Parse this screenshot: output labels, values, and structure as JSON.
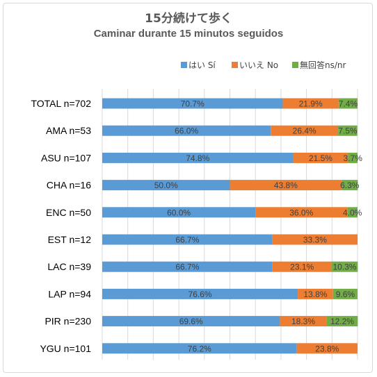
{
  "title": "15分続けて歩く",
  "subtitle": "Caminar durante 15 minutos seguidos",
  "legend": [
    {
      "label": "はい Sí",
      "color": "#5b9bd5"
    },
    {
      "label": "いいえ No",
      "color": "#ed7d31"
    },
    {
      "label": "無回答ns/nr",
      "color": "#70ad47"
    }
  ],
  "chart_data": {
    "type": "bar",
    "orientation": "horizontal",
    "stacked": "100%",
    "categories": [
      "TOTAL n=702",
      "AMA n=53",
      "ASU n=107",
      "CHA  n=16",
      "ENC n=50",
      "EST n=12",
      "LAC n=39",
      "LAP n=94",
      "PIR n=230",
      "YGU n=101"
    ],
    "series": [
      {
        "name": "はい Sí",
        "color": "#5b9bd5",
        "values": [
          70.7,
          66.0,
          74.8,
          50.0,
          60.0,
          66.7,
          66.7,
          76.6,
          69.6,
          76.2
        ],
        "labels": [
          "70.7%",
          "66.0%",
          "74.8%",
          "50.0%",
          "60.0%",
          "66.7%",
          "66.7%",
          "76.6%",
          "69.6%",
          "76.2%"
        ]
      },
      {
        "name": "いいえ No",
        "color": "#ed7d31",
        "values": [
          21.9,
          26.4,
          21.5,
          43.8,
          36.0,
          33.3,
          23.1,
          13.8,
          18.3,
          23.8
        ],
        "labels": [
          "21.9%",
          "26.4%",
          "21.5%",
          "43.8%",
          "36.0%",
          "33.3%",
          "23.1%",
          "13.8%",
          "18.3%",
          "23.8%"
        ]
      },
      {
        "name": "無回答ns/nr",
        "color": "#70ad47",
        "values": [
          7.4,
          7.5,
          3.7,
          6.3,
          4.0,
          0,
          10.3,
          9.6,
          12.2,
          0
        ],
        "labels": [
          "7.4%",
          "7.5%",
          "3.7%",
          "6.3%",
          "4.0%",
          "",
          "10.3%",
          "9.6%",
          "12.2%",
          ""
        ]
      }
    ],
    "xlim": [
      0,
      100
    ],
    "grid": true,
    "legend_position": "top-right",
    "label_color": "#404040",
    "grid_color": "#d9d9d9"
  }
}
